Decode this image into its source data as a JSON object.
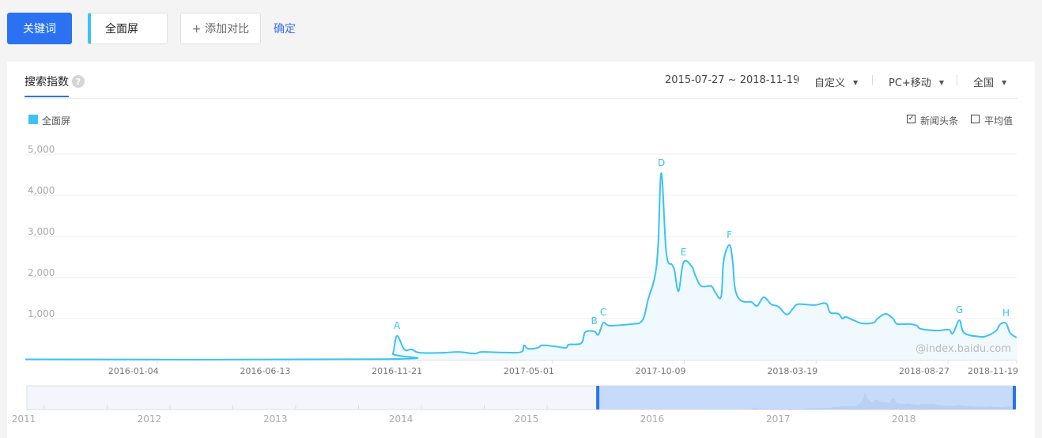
{
  "toolbar": {
    "keyword_button": "关键词",
    "keyword_value": "全面屏",
    "add_compare": "+ 添加对比",
    "confirm": "确定"
  },
  "panel": {
    "tab": "搜索指数",
    "help_icon": "question-circle-icon",
    "help_glyph": "?",
    "date_range": "2015-07-27 ~ 2018-11-19",
    "filters": [
      {
        "label": "自定义"
      },
      {
        "label": "PC+移动"
      },
      {
        "label": "全国"
      }
    ],
    "legend": "全面屏",
    "options": [
      {
        "label": "新闻头条",
        "checked": true
      },
      {
        "label": "平均值",
        "checked": false
      }
    ]
  },
  "chart_data": {
    "type": "area",
    "x_type": "date",
    "xlim": [
      "2015-07-27",
      "2018-11-19"
    ],
    "ylim": [
      0,
      5000
    ],
    "grid": true,
    "legend_placement": "top-left",
    "series_color": "#3cc2f4",
    "y_ticks": [
      "1,000",
      "2,000",
      "3,000",
      "4,000",
      "5,000"
    ],
    "y_tick_values": [
      1000,
      2000,
      3000,
      4000,
      5000
    ],
    "x_ticks": [
      "2016-01-04",
      "2016-06-13",
      "2016-11-21",
      "2017-05-01",
      "2017-10-09",
      "2018-03-19",
      "2018-08-27",
      "2018-11-19"
    ],
    "watermark": "@index.baidu.com",
    "series": [
      {
        "name": "全面屏",
        "points": [
          [
            "2015-07-27",
            10
          ],
          [
            "2016-10-11",
            15
          ],
          [
            "2016-10-18",
            150
          ],
          [
            "2016-10-23",
            580
          ],
          [
            "2016-11-01",
            250
          ],
          [
            "2016-11-10",
            250
          ],
          [
            "2016-11-20",
            170
          ],
          [
            "2016-12-18",
            170
          ],
          [
            "2017-01-06",
            190
          ],
          [
            "2017-01-26",
            150
          ],
          [
            "2017-02-04",
            190
          ],
          [
            "2017-03-05",
            175
          ],
          [
            "2017-03-24",
            190
          ],
          [
            "2017-03-27",
            350
          ],
          [
            "2017-04-01",
            270
          ],
          [
            "2017-04-13",
            290
          ],
          [
            "2017-04-18",
            350
          ],
          [
            "2017-05-02",
            330
          ],
          [
            "2017-05-17",
            290
          ],
          [
            "2017-05-21",
            370
          ],
          [
            "2017-06-05",
            400
          ],
          [
            "2017-06-10",
            670
          ],
          [
            "2017-06-21",
            690
          ],
          [
            "2017-06-26",
            610
          ],
          [
            "2017-07-02",
            900
          ],
          [
            "2017-07-09",
            830
          ],
          [
            "2017-07-28",
            850
          ],
          [
            "2017-08-07",
            870
          ],
          [
            "2017-08-16",
            900
          ],
          [
            "2017-08-21",
            1060
          ],
          [
            "2017-08-26",
            1480
          ],
          [
            "2017-09-03",
            2020
          ],
          [
            "2017-09-07",
            2790
          ],
          [
            "2017-09-11",
            4540
          ],
          [
            "2017-09-17",
            2600
          ],
          [
            "2017-09-24",
            2310
          ],
          [
            "2017-09-27",
            2170
          ],
          [
            "2017-10-02",
            1670
          ],
          [
            "2017-10-08",
            2370
          ],
          [
            "2017-10-18",
            2270
          ],
          [
            "2017-10-23",
            2020
          ],
          [
            "2017-10-30",
            1790
          ],
          [
            "2017-11-11",
            1790
          ],
          [
            "2017-11-16",
            1630
          ],
          [
            "2017-11-23",
            1540
          ],
          [
            "2017-11-26",
            2400
          ],
          [
            "2017-12-03",
            2790
          ],
          [
            "2017-12-07",
            2400
          ],
          [
            "2017-12-10",
            1730
          ],
          [
            "2017-12-17",
            1440
          ],
          [
            "2017-12-30",
            1400
          ],
          [
            "2018-01-06",
            1310
          ],
          [
            "2018-01-14",
            1520
          ],
          [
            "2018-01-23",
            1350
          ],
          [
            "2018-02-01",
            1290
          ],
          [
            "2018-02-11",
            1100
          ],
          [
            "2018-02-19",
            1250
          ],
          [
            "2018-02-25",
            1350
          ],
          [
            "2018-03-17",
            1330
          ],
          [
            "2018-03-31",
            1370
          ],
          [
            "2018-04-05",
            1150
          ],
          [
            "2018-04-15",
            1120
          ],
          [
            "2018-04-20",
            1000
          ],
          [
            "2018-04-24",
            1040
          ],
          [
            "2018-05-04",
            960
          ],
          [
            "2018-05-14",
            885
          ],
          [
            "2018-05-28",
            900
          ],
          [
            "2018-06-02",
            1000
          ],
          [
            "2018-06-12",
            1115
          ],
          [
            "2018-06-21",
            1000
          ],
          [
            "2018-06-26",
            870
          ],
          [
            "2018-07-11",
            870
          ],
          [
            "2018-07-20",
            830
          ],
          [
            "2018-07-25",
            750
          ],
          [
            "2018-08-14",
            710
          ],
          [
            "2018-08-28",
            730
          ],
          [
            "2018-09-02",
            640
          ],
          [
            "2018-09-10",
            960
          ],
          [
            "2018-09-16",
            650
          ],
          [
            "2018-10-06",
            560
          ],
          [
            "2018-10-16",
            600
          ],
          [
            "2018-10-25",
            710
          ],
          [
            "2018-10-30",
            865
          ],
          [
            "2018-11-06",
            885
          ],
          [
            "2018-11-11",
            650
          ],
          [
            "2018-11-19",
            540
          ]
        ]
      }
    ],
    "annotations": [
      {
        "label": "A",
        "date": "2016-10-23",
        "value": 580
      },
      {
        "label": "B",
        "date": "2017-06-21",
        "value": 690
      },
      {
        "label": "C",
        "date": "2017-07-02",
        "value": 900
      },
      {
        "label": "D",
        "date": "2017-09-11",
        "value": 4540
      },
      {
        "label": "E",
        "date": "2017-10-08",
        "value": 2370
      },
      {
        "label": "F",
        "date": "2017-12-03",
        "value": 2790
      },
      {
        "label": "G",
        "date": "2018-09-10",
        "value": 960
      },
      {
        "label": "H",
        "date": "2018-11-06",
        "value": 885
      }
    ],
    "overview": {
      "years": [
        "2011",
        "2012",
        "2013",
        "2014",
        "2015",
        "2016",
        "2017",
        "2018"
      ],
      "selection": [
        "2015-07-27",
        "2018-11-19"
      ]
    }
  }
}
